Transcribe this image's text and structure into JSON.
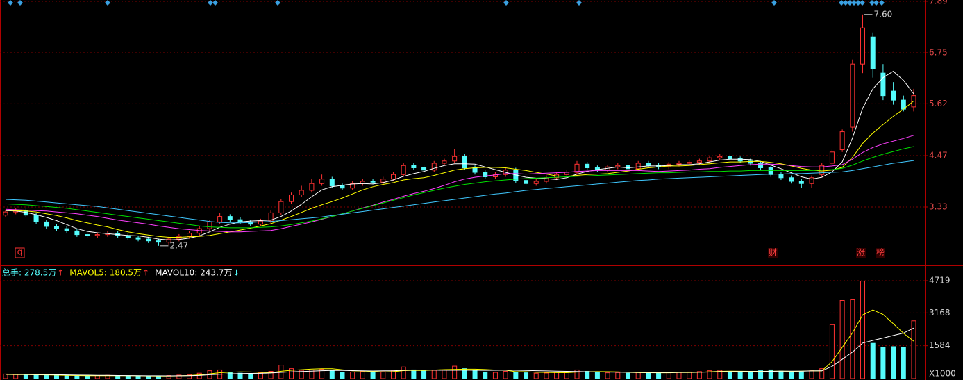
{
  "chart_data": [
    {
      "type": "candlestick",
      "ylim": [
        2.19,
        7.92
      ],
      "yticks": [
        3.33,
        4.47,
        5.62,
        6.75,
        7.89
      ],
      "grid": true,
      "up_color": "#ff3232",
      "down_color": "#54fcfc",
      "open": [
        3.15,
        3.22,
        3.25,
        3.15,
        3.0,
        2.9,
        2.85,
        2.8,
        2.72,
        2.7,
        2.72,
        2.75,
        2.7,
        2.65,
        2.62,
        2.58,
        2.55,
        2.62,
        2.68,
        2.75,
        2.85,
        3.0,
        3.12,
        3.05,
        3.0,
        2.95,
        3.02,
        3.2,
        3.45,
        3.6,
        3.7,
        3.85,
        3.95,
        3.8,
        3.75,
        3.85,
        3.9,
        3.88,
        3.95,
        4.05,
        4.25,
        4.2,
        4.15,
        4.3,
        4.35,
        4.45,
        4.2,
        4.1,
        4.0,
        4.05,
        4.15,
        3.92,
        3.85,
        3.9,
        3.98,
        4.05,
        4.1,
        4.28,
        4.2,
        4.15,
        4.22,
        4.25,
        4.18,
        4.3,
        4.25,
        4.22,
        4.28,
        4.3,
        4.32,
        4.35,
        4.42,
        4.45,
        4.4,
        4.35,
        4.3,
        4.2,
        4.05,
        3.98,
        3.9,
        3.85,
        4.05,
        4.3,
        4.6,
        5.1,
        6.5,
        7.1,
        6.3,
        5.9,
        5.7,
        5.55
      ],
      "high": [
        3.27,
        3.3,
        3.3,
        3.2,
        3.05,
        2.95,
        2.9,
        2.85,
        2.77,
        2.77,
        2.8,
        2.8,
        2.75,
        2.7,
        2.67,
        2.63,
        2.67,
        2.73,
        2.8,
        2.9,
        3.05,
        3.2,
        3.17,
        3.1,
        3.05,
        3.07,
        3.25,
        3.5,
        3.65,
        3.8,
        3.95,
        4.05,
        4.0,
        3.85,
        3.9,
        3.95,
        3.95,
        4.0,
        4.1,
        4.3,
        4.3,
        4.25,
        4.35,
        4.4,
        4.62,
        4.5,
        4.25,
        4.15,
        4.1,
        4.2,
        4.2,
        3.97,
        3.95,
        4.03,
        4.1,
        4.15,
        4.35,
        4.33,
        4.25,
        4.27,
        4.3,
        4.3,
        4.35,
        4.35,
        4.3,
        4.33,
        4.35,
        4.37,
        4.4,
        4.47,
        4.5,
        4.5,
        4.45,
        4.4,
        4.35,
        4.25,
        4.1,
        4.03,
        3.95,
        4.03,
        4.3,
        4.6,
        5.05,
        6.6,
        7.6,
        7.2,
        6.5,
        6.1,
        5.8,
        5.95
      ],
      "low": [
        3.1,
        3.17,
        3.1,
        2.95,
        2.85,
        2.8,
        2.75,
        2.67,
        2.65,
        2.65,
        2.67,
        2.65,
        2.6,
        2.57,
        2.53,
        2.47,
        2.5,
        2.57,
        2.63,
        2.7,
        2.8,
        2.95,
        3.0,
        2.95,
        2.9,
        2.9,
        2.97,
        3.15,
        3.4,
        3.55,
        3.65,
        3.8,
        3.75,
        3.7,
        3.7,
        3.8,
        3.83,
        3.83,
        3.9,
        4.0,
        4.15,
        4.1,
        4.1,
        4.25,
        4.3,
        4.15,
        4.05,
        3.95,
        3.95,
        4.0,
        3.87,
        3.8,
        3.8,
        3.85,
        3.93,
        4.0,
        4.05,
        4.15,
        4.1,
        4.1,
        4.17,
        4.13,
        4.13,
        4.2,
        4.17,
        4.17,
        4.23,
        4.25,
        4.27,
        4.3,
        4.37,
        4.35,
        4.3,
        4.25,
        4.15,
        4.0,
        3.93,
        3.85,
        3.75,
        3.75,
        4.0,
        4.25,
        4.55,
        5.0,
        6.3,
        6.2,
        5.7,
        5.6,
        5.45,
        5.45
      ],
      "close": [
        3.22,
        3.25,
        3.15,
        3.0,
        2.9,
        2.85,
        2.8,
        2.72,
        2.7,
        2.72,
        2.75,
        2.7,
        2.65,
        2.62,
        2.58,
        2.55,
        2.62,
        2.68,
        2.75,
        2.85,
        3.0,
        3.12,
        3.05,
        3.0,
        2.95,
        3.02,
        3.2,
        3.45,
        3.6,
        3.7,
        3.85,
        3.95,
        3.8,
        3.75,
        3.85,
        3.9,
        3.88,
        3.95,
        4.05,
        4.25,
        4.2,
        4.15,
        4.3,
        4.35,
        4.45,
        4.2,
        4.1,
        4.0,
        4.05,
        4.15,
        3.92,
        3.85,
        3.9,
        3.98,
        4.05,
        4.1,
        4.28,
        4.2,
        4.15,
        4.22,
        4.25,
        4.18,
        4.3,
        4.25,
        4.22,
        4.28,
        4.3,
        4.32,
        4.35,
        4.42,
        4.45,
        4.4,
        4.35,
        4.3,
        4.2,
        4.05,
        3.98,
        3.9,
        3.85,
        3.98,
        4.25,
        4.55,
        5.0,
        6.5,
        7.3,
        6.4,
        5.8,
        5.7,
        5.5,
        5.8
      ],
      "series": [
        {
          "color": "#ffffff",
          "values": [
            3.25,
            3.24,
            3.21,
            3.16,
            3.1,
            3.03,
            2.94,
            2.85,
            2.79,
            2.76,
            2.74,
            2.72,
            2.7,
            2.69,
            2.66,
            2.62,
            2.6,
            2.61,
            2.64,
            2.69,
            2.78,
            2.88,
            2.95,
            3.0,
            3.02,
            3.03,
            3.04,
            3.12,
            3.24,
            3.39,
            3.56,
            3.71,
            3.78,
            3.81,
            3.84,
            3.85,
            3.84,
            3.87,
            3.93,
            4.01,
            4.07,
            4.12,
            4.19,
            4.25,
            4.29,
            4.29,
            4.28,
            4.22,
            4.16,
            4.1,
            4.04,
            3.99,
            3.97,
            3.96,
            3.94,
            3.98,
            4.06,
            4.12,
            4.16,
            4.19,
            4.22,
            4.2,
            4.22,
            4.24,
            4.24,
            4.25,
            4.27,
            4.27,
            4.29,
            4.33,
            4.37,
            4.39,
            4.39,
            4.38,
            4.34,
            4.26,
            4.18,
            4.09,
            4.0,
            3.95,
            3.99,
            4.11,
            4.33,
            4.86,
            5.52,
            5.95,
            6.2,
            6.34,
            6.14,
            5.84
          ]
        },
        {
          "color": "#ffff00",
          "values": [
            3.26,
            3.25,
            3.24,
            3.22,
            3.18,
            3.14,
            3.09,
            3.03,
            2.98,
            2.93,
            2.89,
            2.83,
            2.78,
            2.74,
            2.71,
            2.68,
            2.66,
            2.66,
            2.67,
            2.68,
            2.7,
            2.74,
            2.78,
            2.82,
            2.86,
            2.91,
            2.96,
            3.04,
            3.12,
            3.21,
            3.3,
            3.38,
            3.45,
            3.53,
            3.62,
            3.71,
            3.78,
            3.83,
            3.87,
            3.93,
            3.96,
            3.98,
            4.03,
            4.09,
            4.15,
            4.18,
            4.2,
            4.21,
            4.21,
            4.2,
            4.17,
            4.14,
            4.1,
            4.06,
            4.02,
            4.01,
            4.03,
            4.05,
            4.06,
            4.07,
            4.1,
            4.13,
            4.17,
            4.2,
            4.22,
            4.24,
            4.24,
            4.25,
            4.27,
            4.29,
            4.31,
            4.33,
            4.33,
            4.34,
            4.34,
            4.32,
            4.29,
            4.24,
            4.19,
            4.15,
            4.13,
            4.15,
            4.21,
            4.43,
            4.74,
            4.97,
            5.16,
            5.34,
            5.5,
            5.68
          ]
        },
        {
          "color": "#ff40ff",
          "values": [
            3.28,
            3.27,
            3.26,
            3.25,
            3.24,
            3.22,
            3.2,
            3.18,
            3.15,
            3.12,
            3.08,
            3.04,
            3.01,
            2.98,
            2.95,
            2.91,
            2.88,
            2.85,
            2.83,
            2.81,
            2.8,
            2.79,
            2.78,
            2.78,
            2.79,
            2.8,
            2.81,
            2.85,
            2.9,
            2.95,
            3.0,
            3.06,
            3.12,
            3.18,
            3.24,
            3.31,
            3.37,
            3.44,
            3.5,
            3.57,
            3.63,
            3.68,
            3.74,
            3.81,
            3.89,
            3.95,
            3.99,
            4.02,
            4.04,
            4.07,
            4.07,
            4.06,
            4.07,
            4.08,
            4.09,
            4.1,
            4.12,
            4.13,
            4.14,
            4.14,
            4.14,
            4.14,
            4.14,
            4.13,
            4.12,
            4.13,
            4.14,
            4.15,
            4.17,
            4.18,
            4.21,
            4.23,
            4.25,
            4.27,
            4.28,
            4.28,
            4.27,
            4.25,
            4.23,
            4.22,
            4.22,
            4.24,
            4.27,
            4.39,
            4.54,
            4.65,
            4.73,
            4.79,
            4.85,
            4.92
          ]
        },
        {
          "color": "#00e000",
          "values": [
            3.4,
            3.39,
            3.38,
            3.36,
            3.34,
            3.32,
            3.3,
            3.27,
            3.24,
            3.21,
            3.18,
            3.15,
            3.12,
            3.09,
            3.06,
            3.03,
            3.0,
            2.97,
            2.94,
            2.91,
            2.89,
            2.88,
            2.87,
            2.87,
            2.87,
            2.88,
            2.89,
            2.91,
            2.94,
            2.98,
            3.02,
            3.07,
            3.12,
            3.18,
            3.24,
            3.3,
            3.36,
            3.42,
            3.48,
            3.54,
            3.6,
            3.65,
            3.7,
            3.75,
            3.79,
            3.83,
            3.86,
            3.89,
            3.91,
            3.93,
            3.95,
            3.96,
            3.97,
            3.98,
            3.99,
            4.0,
            4.01,
            4.02,
            4.03,
            4.04,
            4.05,
            4.06,
            4.07,
            4.08,
            4.09,
            4.09,
            4.1,
            4.11,
            4.11,
            4.12,
            4.12,
            4.13,
            4.13,
            4.14,
            4.14,
            4.14,
            4.14,
            4.14,
            4.14,
            4.14,
            4.15,
            4.16,
            4.19,
            4.26,
            4.35,
            4.43,
            4.5,
            4.56,
            4.62,
            4.67
          ]
        },
        {
          "color": "#40c8ff",
          "values": [
            3.5,
            3.49,
            3.48,
            3.46,
            3.44,
            3.42,
            3.4,
            3.38,
            3.36,
            3.34,
            3.31,
            3.28,
            3.25,
            3.22,
            3.19,
            3.16,
            3.13,
            3.1,
            3.07,
            3.04,
            3.01,
            2.99,
            2.98,
            2.98,
            2.99,
            3.0,
            3.01,
            3.03,
            3.05,
            3.07,
            3.09,
            3.11,
            3.14,
            3.17,
            3.2,
            3.23,
            3.26,
            3.29,
            3.32,
            3.35,
            3.38,
            3.41,
            3.44,
            3.47,
            3.5,
            3.53,
            3.56,
            3.59,
            3.62,
            3.64,
            3.67,
            3.7,
            3.72,
            3.74,
            3.76,
            3.78,
            3.8,
            3.82,
            3.84,
            3.86,
            3.88,
            3.9,
            3.92,
            3.93,
            3.95,
            3.96,
            3.97,
            3.98,
            3.99,
            4.0,
            4.01,
            4.02,
            4.03,
            4.04,
            4.05,
            4.06,
            4.06,
            4.07,
            4.07,
            4.08,
            4.09,
            4.1,
            4.11,
            4.14,
            4.18,
            4.22,
            4.26,
            4.3,
            4.33,
            4.36
          ]
        }
      ],
      "high_label": "7.60",
      "low_label": "2.47",
      "event_labels": [
        "财",
        "涨",
        "榜"
      ],
      "corner_label": "q"
    },
    {
      "type": "bar",
      "ylim": [
        0,
        5355
      ],
      "yticks": [
        1584,
        3168,
        4719
      ],
      "grid": true,
      "unit_label": "X1000",
      "values": [
        220,
        200,
        180,
        160,
        150,
        170,
        140,
        130,
        120,
        150,
        160,
        140,
        130,
        120,
        110,
        130,
        150,
        170,
        190,
        260,
        380,
        420,
        300,
        260,
        240,
        280,
        350,
        650,
        480,
        400,
        420,
        450,
        380,
        300,
        320,
        350,
        300,
        330,
        380,
        560,
        420,
        380,
        400,
        420,
        600,
        480,
        380,
        320,
        300,
        350,
        330,
        280,
        260,
        270,
        300,
        320,
        420,
        350,
        300,
        280,
        290,
        260,
        310,
        280,
        260,
        300,
        310,
        320,
        340,
        380,
        400,
        350,
        330,
        300,
        380,
        420,
        360,
        300,
        330,
        380,
        480,
        2600,
        3765,
        3800,
        4700,
        1700,
        1500,
        1540,
        1500,
        2785
      ],
      "legend": [
        {
          "text": "总手: 278.5万",
          "arrow": "↑",
          "color": "#54fcfc"
        },
        {
          "text": "MAVOL5: 180.5万",
          "arrow": "↑",
          "color": "#ffff00"
        },
        {
          "text": "MAVOL10: 243.7万",
          "arrow": "↓",
          "color": "#ffffff"
        }
      ],
      "series": [
        {
          "name": "MAVOL5",
          "color": "#ffff00",
          "values": [
            200,
            195,
            190,
            185,
            182,
            172,
            160,
            150,
            142,
            142,
            140,
            140,
            140,
            136,
            132,
            126,
            128,
            136,
            150,
            180,
            232,
            284,
            310,
            324,
            320,
            300,
            286,
            356,
            400,
            432,
            460,
            480,
            476,
            430,
            374,
            364,
            340,
            320,
            336,
            384,
            398,
            394,
            414,
            436,
            444,
            456,
            456,
            440,
            416,
            406,
            336,
            336,
            304,
            298,
            288,
            286,
            314,
            332,
            338,
            334,
            328,
            300,
            288,
            284,
            280,
            282,
            292,
            294,
            306,
            330,
            350,
            358,
            356,
            352,
            352,
            356,
            358,
            352,
            358,
            374,
            370,
            818,
            1511,
            2205,
            3069,
            3313,
            3093,
            2648,
            2188,
            1805
          ]
        },
        {
          "name": "MAVOL10",
          "color": "#ffffff",
          "values": [
            210,
            205,
            200,
            195,
            190,
            186,
            180,
            172,
            166,
            160,
            156,
            152,
            148,
            142,
            138,
            136,
            134,
            138,
            143,
            155,
            186,
            212,
            230,
            242,
            250,
            256,
            270,
            300,
            325,
            345,
            360,
            380,
            390,
            390,
            386,
            378,
            368,
            376,
            375,
            400,
            412,
            418,
            408,
            400,
            400,
            405,
            400,
            397,
            400,
            410,
            400,
            390,
            380,
            370,
            362,
            352,
            344,
            330,
            320,
            314,
            310,
            305,
            300,
            295,
            294,
            296,
            300,
            305,
            310,
            318,
            335,
            337,
            340,
            342,
            345,
            350,
            358,
            360,
            360,
            370,
            376,
            588,
            932,
            1282,
            1714,
            1842,
            1956,
            2080,
            2197,
            2437
          ]
        }
      ]
    }
  ]
}
